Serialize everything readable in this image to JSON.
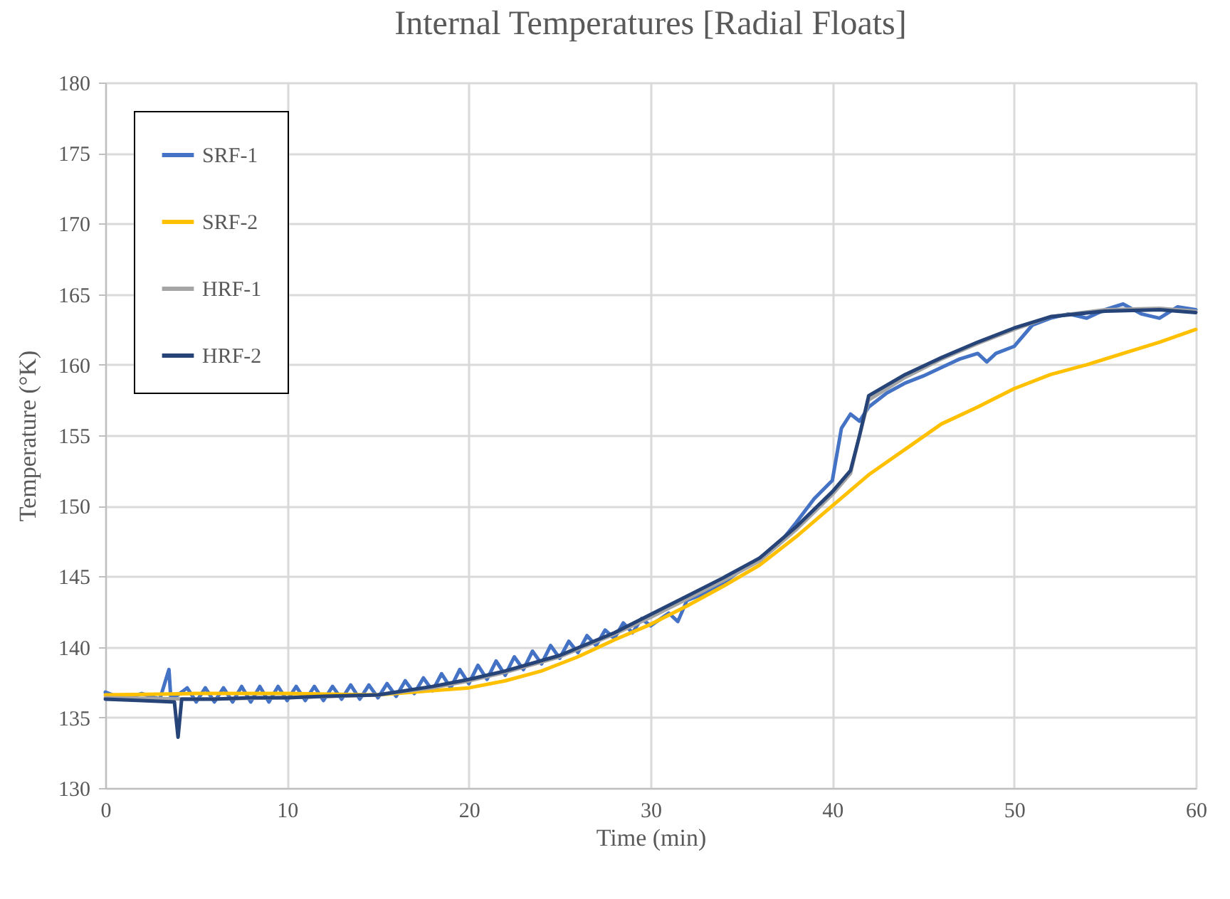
{
  "chart_data": {
    "type": "line",
    "title": "Internal Temperatures [Radial Floats]",
    "xlabel": "Time (min)",
    "ylabel": "Temperature (°K)",
    "xlim": [
      0,
      60
    ],
    "xticks": [
      0,
      10,
      20,
      30,
      40,
      50,
      60
    ],
    "ylim": [
      130,
      180
    ],
    "yticks": [
      130,
      135,
      140,
      145,
      150,
      155,
      160,
      165,
      170,
      175,
      180
    ],
    "grid": true,
    "legend": "top left",
    "line_style": "solid",
    "marker": "none",
    "series": [
      {
        "name": "SRF-1",
        "color": "#4472c4",
        "x": [
          0,
          1,
          2,
          3,
          3.5,
          3.6,
          4,
          4.5,
          5,
          5.5,
          6,
          6.5,
          7,
          7.5,
          8,
          8.5,
          9,
          9.5,
          10,
          10.5,
          11,
          11.5,
          12,
          12.5,
          13,
          13.5,
          14,
          14.5,
          15,
          15.5,
          16,
          16.5,
          17,
          17.5,
          18,
          18.5,
          19,
          19.5,
          20,
          20.5,
          21,
          21.5,
          22,
          22.5,
          23,
          23.5,
          24,
          24.5,
          25,
          25.5,
          26,
          26.5,
          27,
          27.5,
          28,
          28.5,
          29,
          29.5,
          30,
          31,
          31.5,
          32,
          33,
          34,
          35,
          36,
          37,
          38,
          39,
          40,
          40.5,
          41,
          41.5,
          42,
          43,
          44,
          45,
          46,
          47,
          48,
          48.5,
          49,
          50,
          51,
          52,
          53,
          54,
          55,
          56,
          57,
          58,
          59,
          60
        ],
        "values": [
          136.8,
          136.3,
          136.7,
          136.3,
          138.4,
          136.4,
          136.6,
          137.1,
          136.1,
          137.1,
          136.1,
          137.1,
          136.1,
          137.2,
          136.1,
          137.2,
          136.1,
          137.2,
          136.2,
          137.2,
          136.2,
          137.2,
          136.2,
          137.2,
          136.3,
          137.3,
          136.3,
          137.3,
          136.4,
          137.4,
          136.5,
          137.6,
          136.7,
          137.8,
          136.9,
          138.1,
          137.1,
          138.4,
          137.4,
          138.7,
          137.7,
          139.0,
          138.0,
          139.3,
          138.4,
          139.7,
          138.8,
          140.1,
          139.2,
          140.4,
          139.6,
          140.8,
          140.1,
          141.2,
          140.6,
          141.7,
          141.0,
          142.0,
          141.5,
          142.4,
          141.8,
          143.3,
          143.8,
          144.5,
          145.5,
          146.3,
          147.2,
          148.8,
          150.5,
          151.8,
          155.5,
          156.5,
          156.0,
          157.0,
          158.0,
          158.7,
          159.2,
          159.8,
          160.4,
          160.8,
          160.2,
          160.8,
          161.3,
          162.8,
          163.3,
          163.6,
          163.3,
          163.9,
          164.3,
          163.6,
          163.3,
          164.1,
          163.9
        ]
      },
      {
        "name": "SRF-2",
        "color": "#ffc000",
        "x": [
          0,
          5,
          10,
          15,
          18,
          20,
          22,
          24,
          26,
          28,
          30,
          32,
          34,
          36,
          38,
          40,
          42,
          44,
          46,
          48,
          50,
          52,
          54,
          56,
          58,
          60
        ],
        "values": [
          136.6,
          136.7,
          136.7,
          136.6,
          136.9,
          137.1,
          137.6,
          138.3,
          139.3,
          140.5,
          141.6,
          142.9,
          144.3,
          145.8,
          147.8,
          150.0,
          152.2,
          154.0,
          155.8,
          157.0,
          158.3,
          159.3,
          160.0,
          160.8,
          161.6,
          162.5
        ]
      },
      {
        "name": "HRF-1",
        "color": "#a5a5a5",
        "x": [
          0,
          5,
          10,
          15,
          18,
          20,
          22,
          25,
          28,
          30,
          32,
          34,
          36,
          38,
          40,
          41,
          41.5,
          42,
          44,
          46,
          48,
          50,
          52,
          55,
          58,
          60
        ],
        "values": [
          136.4,
          136.3,
          136.4,
          136.6,
          137.1,
          137.6,
          138.2,
          139.3,
          140.9,
          142.1,
          143.4,
          144.7,
          146.1,
          148.3,
          150.8,
          152.3,
          155.0,
          157.5,
          159.1,
          160.4,
          161.5,
          162.5,
          163.4,
          163.9,
          164.0,
          163.8
        ]
      },
      {
        "name": "HRF-2",
        "color": "#264478",
        "x": [
          0,
          2,
          3.8,
          4,
          4.2,
          6,
          8,
          10,
          12,
          15,
          18,
          20,
          22,
          25,
          28,
          30,
          32,
          34,
          36,
          38,
          40,
          41,
          41.5,
          42,
          44,
          46,
          48,
          50,
          52,
          55,
          58,
          60
        ],
        "values": [
          136.3,
          136.2,
          136.1,
          133.6,
          136.3,
          136.3,
          136.4,
          136.4,
          136.5,
          136.6,
          137.2,
          137.7,
          138.3,
          139.4,
          141.0,
          142.3,
          143.6,
          144.9,
          146.3,
          148.5,
          151.0,
          152.5,
          155.0,
          157.8,
          159.3,
          160.5,
          161.6,
          162.6,
          163.4,
          163.8,
          163.9,
          163.7
        ]
      }
    ]
  }
}
